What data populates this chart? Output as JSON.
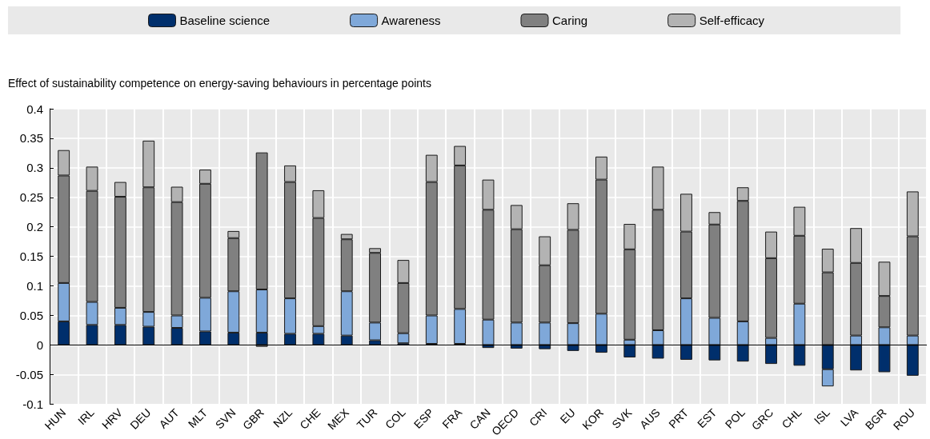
{
  "chart_data": {
    "type": "bar",
    "stacked": true,
    "ylabel": "Effect of sustainability competence on energy-saving behaviours in percentage points",
    "categories": [
      "HUN",
      "IRL",
      "HRV",
      "DEU",
      "AUT",
      "MLT",
      "SVN",
      "GBR",
      "NZL",
      "CHE",
      "MEX",
      "TUR",
      "COL",
      "ESP",
      "FRA",
      "CAN",
      "OECD",
      "CRI",
      "EU",
      "KOR",
      "SVK",
      "AUS",
      "PRT",
      "EST",
      "POL",
      "GRC",
      "CHL",
      "ISL",
      "LVA",
      "BGR",
      "ROU"
    ],
    "series": [
      {
        "name": "Baseline science",
        "color": "#002f6c",
        "values": [
          0.04,
          0.034,
          0.034,
          0.031,
          0.029,
          0.023,
          0.021,
          0.021,
          0.019,
          0.019,
          0.016,
          0.008,
          0.003,
          0.002,
          0.002,
          -0.005,
          -0.006,
          -0.007,
          -0.01,
          -0.013,
          -0.021,
          -0.023,
          -0.025,
          -0.026,
          -0.028,
          -0.032,
          -0.035,
          -0.041,
          -0.043,
          -0.046,
          -0.052
        ]
      },
      {
        "name": "Awareness",
        "color": "#7fa8d9",
        "values": [
          0.065,
          0.039,
          0.029,
          0.025,
          0.021,
          0.057,
          0.07,
          0.073,
          0.06,
          0.013,
          0.075,
          0.03,
          0.017,
          0.048,
          0.059,
          0.043,
          0.038,
          0.038,
          0.037,
          0.053,
          0.009,
          0.025,
          0.079,
          0.046,
          0.04,
          0.012,
          0.07,
          -0.029,
          0.016,
          0.03,
          0.016
        ]
      },
      {
        "name": "Caring",
        "color": "#808080",
        "values": [
          0.182,
          0.188,
          0.188,
          0.211,
          0.192,
          0.193,
          0.09,
          0.232,
          0.197,
          0.183,
          0.088,
          0.118,
          0.085,
          0.226,
          0.243,
          0.186,
          0.158,
          0.097,
          0.158,
          0.227,
          0.153,
          0.204,
          0.113,
          0.158,
          0.204,
          0.135,
          0.115,
          0.123,
          0.123,
          0.053,
          0.168
        ]
      },
      {
        "name": "Self-efficacy",
        "color": "#b3b3b3",
        "values": [
          0.043,
          0.041,
          0.025,
          0.079,
          0.026,
          0.024,
          0.012,
          -0.003,
          0.028,
          0.047,
          0.009,
          0.008,
          0.039,
          0.046,
          0.033,
          0.051,
          0.041,
          0.049,
          0.045,
          0.039,
          0.043,
          0.073,
          0.064,
          0.021,
          0.023,
          0.045,
          0.049,
          0.04,
          0.059,
          0.058,
          0.076
        ]
      }
    ],
    "ylim": [
      -0.1,
      0.4
    ],
    "yticks": [
      -0.1,
      -0.05,
      0,
      0.05,
      0.1,
      0.15,
      0.2,
      0.25,
      0.3,
      0.35,
      0.4
    ],
    "grid": true,
    "legend": "top"
  }
}
